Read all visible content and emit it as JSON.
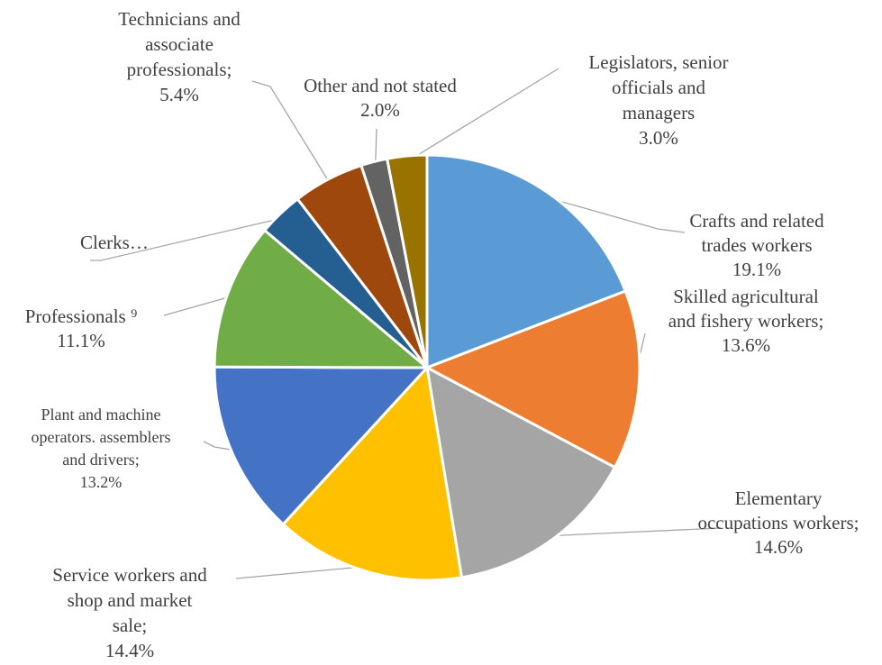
{
  "chart_data": {
    "type": "pie",
    "title": "",
    "slices": [
      {
        "label_lines": [
          "Crafts and related",
          "trades workers",
          "19.1%"
        ],
        "value": 19.1,
        "color": "#5b9bd5"
      },
      {
        "label_lines": [
          "Skilled agricultural",
          "and fishery workers;",
          "13.6%"
        ],
        "value": 13.6,
        "color": "#ed7d31"
      },
      {
        "label_lines": [
          "Elementary",
          "occupations workers;",
          "14.6%"
        ],
        "value": 14.6,
        "color": "#a5a5a5"
      },
      {
        "label_lines": [
          "Service workers and",
          "shop and market",
          "sale;",
          "14.4%"
        ],
        "value": 14.4,
        "color": "#ffc000"
      },
      {
        "label_lines": [
          "Plant and machine",
          "operators. assemblers",
          "and drivers;",
          "13.2%"
        ],
        "value": 13.2,
        "color": "#4472c4"
      },
      {
        "label_lines": [
          "Professionals ⁹",
          "11.1%"
        ],
        "value": 11.1,
        "color": "#70ad47"
      },
      {
        "label_lines": [
          "Clerks…"
        ],
        "value": 3.4,
        "color": "#255e91"
      },
      {
        "label_lines": [
          "Technicians and",
          "associate",
          "professionals;",
          "5.4%"
        ],
        "value": 5.4,
        "color": "#9e480e"
      },
      {
        "label_lines": [
          "Other and not stated",
          "2.0%"
        ],
        "value": 2.0,
        "color": "#636363"
      },
      {
        "label_lines": [
          "Legislators, senior",
          "officials and",
          "managers",
          "3.0%"
        ],
        "value": 3.0,
        "color": "#997300"
      }
    ]
  }
}
